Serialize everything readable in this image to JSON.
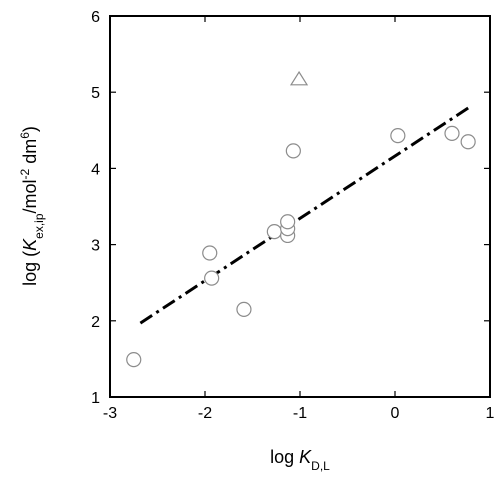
{
  "chart_data": {
    "type": "scatter",
    "xlabel": {
      "prefix": "log ",
      "var": "K",
      "sub": "D,L"
    },
    "ylabel": {
      "prefix": "log (",
      "var": "K",
      "sub": "ex,ip",
      "mid": "/mol",
      "sup1": "-2",
      "mid2": " dm",
      "sup2": "6",
      "suffix": ")"
    },
    "xlim": [
      -3,
      1
    ],
    "ylim": [
      1,
      6
    ],
    "x_ticks": [
      -3,
      -2,
      -1,
      0,
      1
    ],
    "y_ticks": [
      1,
      2,
      3,
      4,
      5,
      6
    ],
    "grid": false,
    "series": [
      {
        "marker": "circle",
        "points": [
          {
            "x": -2.75,
            "y": 1.49
          },
          {
            "x": -1.95,
            "y": 2.89
          },
          {
            "x": -1.93,
            "y": 2.56
          },
          {
            "x": -1.59,
            "y": 2.15
          },
          {
            "x": -1.27,
            "y": 3.17
          },
          {
            "x": -1.13,
            "y": 3.12
          },
          {
            "x": -1.13,
            "y": 3.21
          },
          {
            "x": -1.13,
            "y": 3.3
          },
          {
            "x": -1.07,
            "y": 4.23
          },
          {
            "x": 0.03,
            "y": 4.43
          },
          {
            "x": 0.6,
            "y": 4.46
          },
          {
            "x": 0.77,
            "y": 4.35
          }
        ]
      },
      {
        "marker": "triangle",
        "points": [
          {
            "x": -1.01,
            "y": 5.16
          }
        ]
      }
    ],
    "fit_line": {
      "style": "dash-dot",
      "x": [
        -2.68,
        0.78
      ],
      "y": [
        1.97,
        4.8
      ]
    }
  }
}
